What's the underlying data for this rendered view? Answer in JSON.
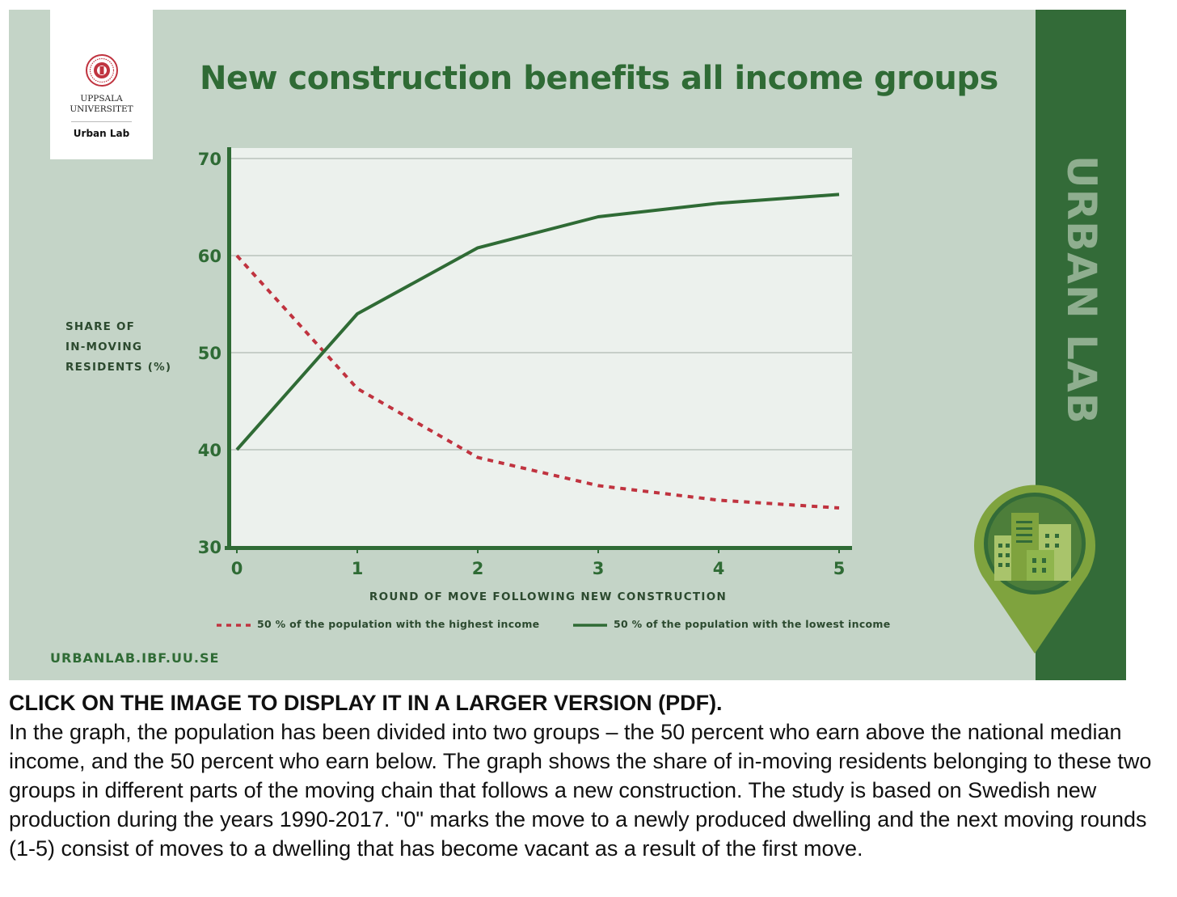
{
  "poster": {
    "title": "New construction benefits all income groups",
    "logo": {
      "university": "UPPSALA\nUNIVERSITET",
      "lab": "Urban Lab"
    },
    "sidebar_text": "URBAN LAB",
    "url": "URBANLAB.IBF.UU.SE",
    "colors": {
      "background": "#c4d4c7",
      "brand_green": "#336b38",
      "highest_income_series": "#c0333f",
      "lowest_income_series": "#2f6b35",
      "pin": "#7fa33e"
    },
    "icons": [
      "university-seal-icon",
      "location-pin-buildings-icon"
    ]
  },
  "chart_data": {
    "type": "line",
    "title": "New construction benefits all income groups",
    "xlabel": "ROUND OF MOVE FOLLOWING NEW CONSTRUCTION",
    "ylabel": "SHARE OF\nIN-MOVING\nRESIDENTS (%)",
    "x": [
      0,
      1,
      2,
      3,
      4,
      5
    ],
    "xticks": [
      "0",
      "1",
      "2",
      "3",
      "4",
      "5"
    ],
    "yticks": [
      "30",
      "40",
      "50",
      "60",
      "70"
    ],
    "ylim": [
      30,
      70
    ],
    "grid": "horizontal",
    "legend_position": "bottom",
    "series": [
      {
        "name": "50 % of the population with the highest income",
        "style": "dashed",
        "color": "#c0333f",
        "values": [
          60,
          46.3,
          39.2,
          36.3,
          34.8,
          34
        ]
      },
      {
        "name": "50 % of the population with the lowest income",
        "style": "solid",
        "color": "#2f6b35",
        "values": [
          40,
          54,
          60.8,
          64,
          65.4,
          66.3
        ]
      }
    ]
  },
  "caption": {
    "heading": "CLICK ON THE IMAGE TO DISPLAY IT IN A LARGER VERSION (PDF).",
    "body": "In the graph, the population has been divided into two groups – the 50 percent who earn above the national median income, and the 50 percent who earn below. The graph shows the share of in-moving residents belonging to these two groups in different parts of the moving chain that follows a new construction. The study is based on Swedish new production during the years 1990-2017. \"0\" marks the move to a newly produced dwelling and the next moving rounds (1-5) consist of moves to a dwelling that has become vacant as a result of the first move."
  }
}
